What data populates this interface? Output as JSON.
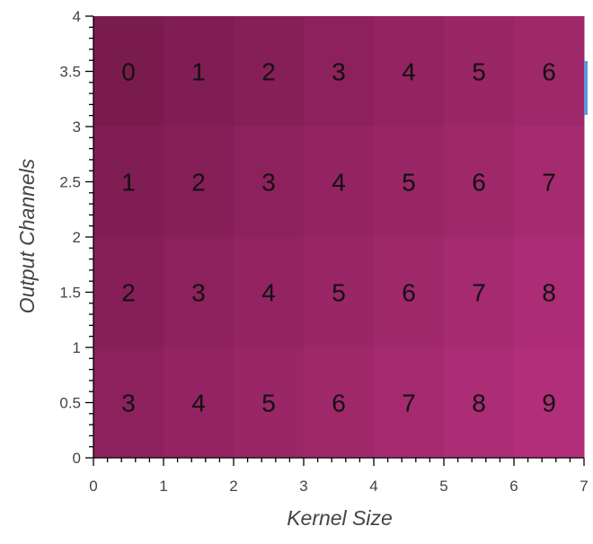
{
  "chart_data": {
    "type": "heatmap",
    "title": "",
    "xlabel": "Kernel Size",
    "ylabel": "Output Channels",
    "xlim": [
      0,
      7
    ],
    "ylim": [
      0,
      4
    ],
    "x_ticks": [
      "0",
      "1",
      "2",
      "3",
      "4",
      "5",
      "6",
      "7"
    ],
    "y_ticks": [
      "0",
      "0.5",
      "1",
      "1.5",
      "2",
      "2.5",
      "3",
      "3.5",
      "4"
    ],
    "cell_x_centers": [
      0.5,
      1.5,
      2.5,
      3.5,
      4.5,
      5.5,
      6.5
    ],
    "cell_y_centers": [
      3.5,
      2.5,
      1.5,
      0.5
    ],
    "values": [
      [
        0,
        1,
        2,
        3,
        4,
        5,
        6
      ],
      [
        1,
        2,
        3,
        4,
        5,
        6,
        7
      ],
      [
        2,
        3,
        4,
        5,
        6,
        7,
        8
      ],
      [
        3,
        4,
        5,
        6,
        7,
        8,
        9
      ]
    ],
    "colormap": {
      "low": "#7a1b4e",
      "high": "#b22e7a"
    },
    "grid": false,
    "legend": "none"
  }
}
